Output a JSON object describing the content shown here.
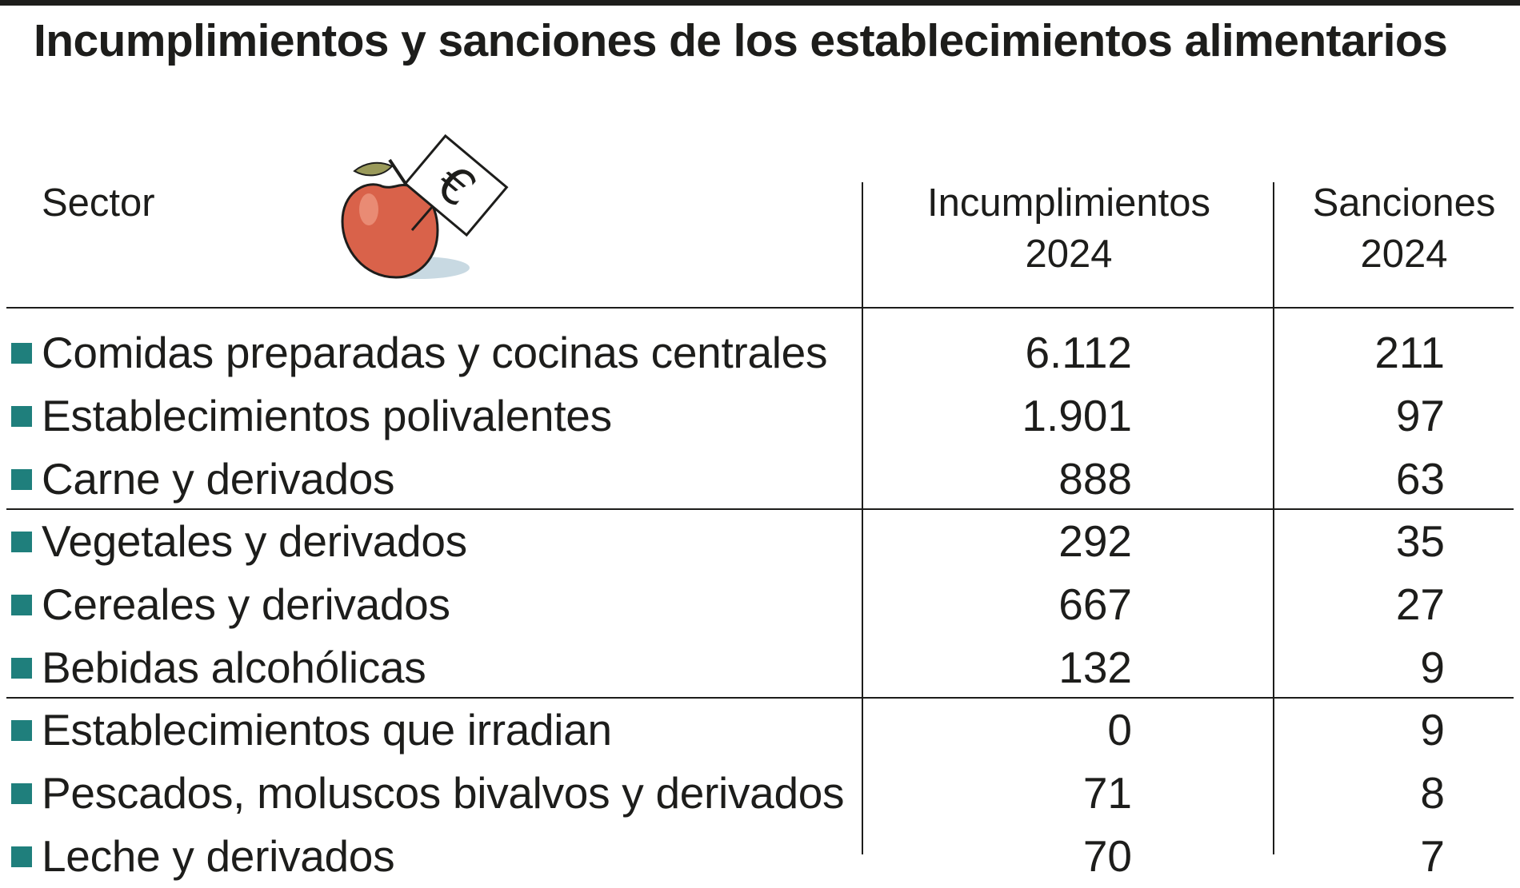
{
  "title": "Incumplimientos y sanciones de los establecimientos alimentarios",
  "header": {
    "sector": "Sector",
    "incumplimientos": [
      "Incumplimientos",
      "2024"
    ],
    "sanciones": [
      "Sanciones",
      "2024"
    ]
  },
  "illustration": {
    "apple_icon": "apple-icon",
    "euro_sign_icon": "euro-sign-icon",
    "euro_symbol": "€"
  },
  "colors": {
    "bullet": "#1f7f7c",
    "apple": "#d9624a",
    "text": "#1d1d1b"
  },
  "chart_data": {
    "type": "table",
    "title": "Incumplimientos y sanciones de los establecimientos alimentarios",
    "columns": [
      "Sector",
      "Incumplimientos 2024",
      "Sanciones 2024"
    ],
    "rows": [
      {
        "sector": "Comidas preparadas y cocinas centrales",
        "incumplimientos": "6.112",
        "sanciones": "211"
      },
      {
        "sector": "Establecimientos polivalentes",
        "incumplimientos": "1.901",
        "sanciones": "97"
      },
      {
        "sector": "Carne y derivados",
        "incumplimientos": "888",
        "sanciones": "63"
      },
      {
        "sector": "Vegetales y derivados",
        "incumplimientos": "292",
        "sanciones": "35"
      },
      {
        "sector": "Cereales y derivados",
        "incumplimientos": "667",
        "sanciones": "27"
      },
      {
        "sector": "Bebidas alcohólicas",
        "incumplimientos": "132",
        "sanciones": "9"
      },
      {
        "sector": "Establecimientos que irradian",
        "incumplimientos": "0",
        "sanciones": "9"
      },
      {
        "sector": "Pescados, moluscos bivalvos y derivados",
        "incumplimientos": "71",
        "sanciones": "8"
      },
      {
        "sector": "Leche y derivados",
        "incumplimientos": "70",
        "sanciones": "7"
      }
    ]
  }
}
